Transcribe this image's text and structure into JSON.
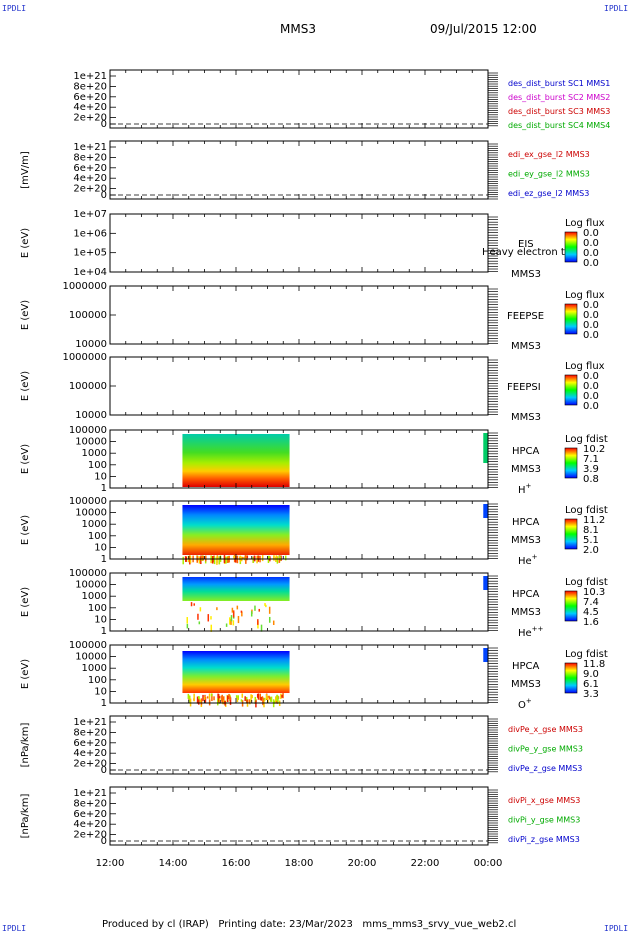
{
  "corner_labels": {
    "tl": "IPDLI",
    "tr": "IPDLI",
    "bl": "IPDLI",
    "br": "IPDLI"
  },
  "header": {
    "spacecraft": "MMS3",
    "datetime": "09/Jul/2015 12:00"
  },
  "footer": {
    "produced": "Produced by cl (IRAP)",
    "printing": "Printing date: 23/Mar/2023",
    "file": "mms_mms3_srvy_vue_web2.cl"
  },
  "x_ticks": [
    "12:00",
    "14:00",
    "16:00",
    "18:00",
    "20:00",
    "22:00",
    "00:00"
  ],
  "colors": {
    "blue": "#0000cc",
    "magenta": "#cc00cc",
    "red": "#cc0000",
    "green": "#00aa00"
  },
  "chart_data": [
    {
      "id": "p1",
      "type": "line",
      "ylabel": "",
      "y_ticks": [
        "1e+21",
        "8e+20",
        "6e+20",
        "4e+20",
        "2e+20",
        "0"
      ],
      "legend": [
        {
          "text": "des_dist_burst SC1 MMS1",
          "color": "blue"
        },
        {
          "text": "des_dist_burst SC2 MMS2",
          "color": "magenta"
        },
        {
          "text": "des_dist_burst SC3 MMS3",
          "color": "red"
        },
        {
          "text": "des_dist_burst SC4 MMS4",
          "color": "green"
        }
      ]
    },
    {
      "id": "p2",
      "type": "line",
      "ylabel": "[mV/m]",
      "y_ticks": [
        "1e+21",
        "8e+20",
        "6e+20",
        "4e+20",
        "2e+20",
        "0"
      ],
      "legend": [
        {
          "text": "edi_ex_gse_l2 MMS3",
          "color": "red"
        },
        {
          "text": "edi_ey_gse_l2 MMS3",
          "color": "green"
        },
        {
          "text": "edi_ez_gse_l2 MMS3",
          "color": "blue"
        }
      ]
    },
    {
      "id": "p3",
      "type": "heatmap",
      "ylabel": "E (eV)",
      "y_ticks": [
        "1e+07",
        "1e+06",
        "1e+05",
        "1e+04"
      ],
      "labels": [
        "EIS",
        "Heavy electron tof",
        "MMS3"
      ],
      "cbar_title": "Log flux",
      "cbar_ticks": [
        "0.0",
        "0.0",
        "0.0",
        "0.0"
      ]
    },
    {
      "id": "p4",
      "type": "heatmap",
      "ylabel": "E (eV)",
      "y_ticks": [
        "1000000",
        "100000",
        "10000"
      ],
      "labels": [
        "FEEPSE",
        "MMS3"
      ],
      "cbar_title": "Log flux",
      "cbar_ticks": [
        "0.0",
        "0.0",
        "0.0",
        "0.0"
      ]
    },
    {
      "id": "p5",
      "type": "heatmap",
      "ylabel": "E (eV)",
      "y_ticks": [
        "1000000",
        "100000",
        "10000"
      ],
      "labels": [
        "FEEPSI",
        "MMS3"
      ],
      "cbar_title": "Log flux",
      "cbar_ticks": [
        "0.0",
        "0.0",
        "0.0",
        "0.0"
      ]
    },
    {
      "id": "p6",
      "type": "heatmap",
      "ylabel": "E (eV)",
      "y_ticks": [
        "100000",
        "10000",
        "1000",
        "100",
        "10",
        "1"
      ],
      "labels": [
        "HPCA",
        "MMS3"
      ],
      "species": "H",
      "species_sup": "+",
      "cbar_title": "Log fdist",
      "cbar_ticks": [
        "10.2",
        "7.1",
        "3.9",
        "0.8"
      ],
      "data_range_hours": [
        14.3,
        17.7
      ],
      "edge_start_hours": 23.85
    },
    {
      "id": "p7",
      "type": "heatmap",
      "ylabel": "E (eV)",
      "y_ticks": [
        "100000",
        "10000",
        "1000",
        "100",
        "10",
        "1"
      ],
      "labels": [
        "HPCA",
        "MMS3"
      ],
      "species": "He",
      "species_sup": "+",
      "cbar_title": "Log fdist",
      "cbar_ticks": [
        "11.2",
        "8.1",
        "5.1",
        "2.0"
      ],
      "data_range_hours": [
        14.3,
        17.7
      ],
      "edge_start_hours": 23.85
    },
    {
      "id": "p8",
      "type": "heatmap",
      "ylabel": "E (eV)",
      "y_ticks": [
        "100000",
        "10000",
        "1000",
        "100",
        "10",
        "1"
      ],
      "labels": [
        "HPCA",
        "MMS3"
      ],
      "species": "He",
      "species_sup": "++",
      "cbar_title": "Log fdist",
      "cbar_ticks": [
        "10.3",
        "7.4",
        "4.5",
        "1.6"
      ],
      "data_range_hours": [
        14.3,
        17.7
      ],
      "edge_start_hours": 23.85
    },
    {
      "id": "p9",
      "type": "heatmap",
      "ylabel": "E (eV)",
      "y_ticks": [
        "100000",
        "10000",
        "1000",
        "100",
        "10",
        "1"
      ],
      "labels": [
        "HPCA",
        "MMS3"
      ],
      "species": "O",
      "species_sup": "+",
      "cbar_title": "Log fdist",
      "cbar_ticks": [
        "11.8",
        "9.0",
        "6.1",
        "3.3"
      ],
      "data_range_hours": [
        14.3,
        17.7
      ],
      "edge_start_hours": 23.85
    },
    {
      "id": "p10",
      "type": "line",
      "ylabel": "[nPa/km]",
      "y_ticks": [
        "1e+21",
        "8e+20",
        "6e+20",
        "4e+20",
        "2e+20",
        "0"
      ],
      "legend": [
        {
          "text": "divPe_x_gse MMS3",
          "color": "red"
        },
        {
          "text": "divPe_y_gse MMS3",
          "color": "green"
        },
        {
          "text": "divPe_z_gse MMS3",
          "color": "blue"
        }
      ]
    },
    {
      "id": "p11",
      "type": "line",
      "ylabel": "[nPa/km]",
      "y_ticks": [
        "1e+21",
        "8e+20",
        "6e+20",
        "4e+20",
        "2e+20",
        "0"
      ],
      "legend": [
        {
          "text": "divPi_x_gse MMS3",
          "color": "red"
        },
        {
          "text": "divPi_y_gse MMS3",
          "color": "green"
        },
        {
          "text": "divPi_z_gse MMS3",
          "color": "blue"
        }
      ]
    }
  ]
}
